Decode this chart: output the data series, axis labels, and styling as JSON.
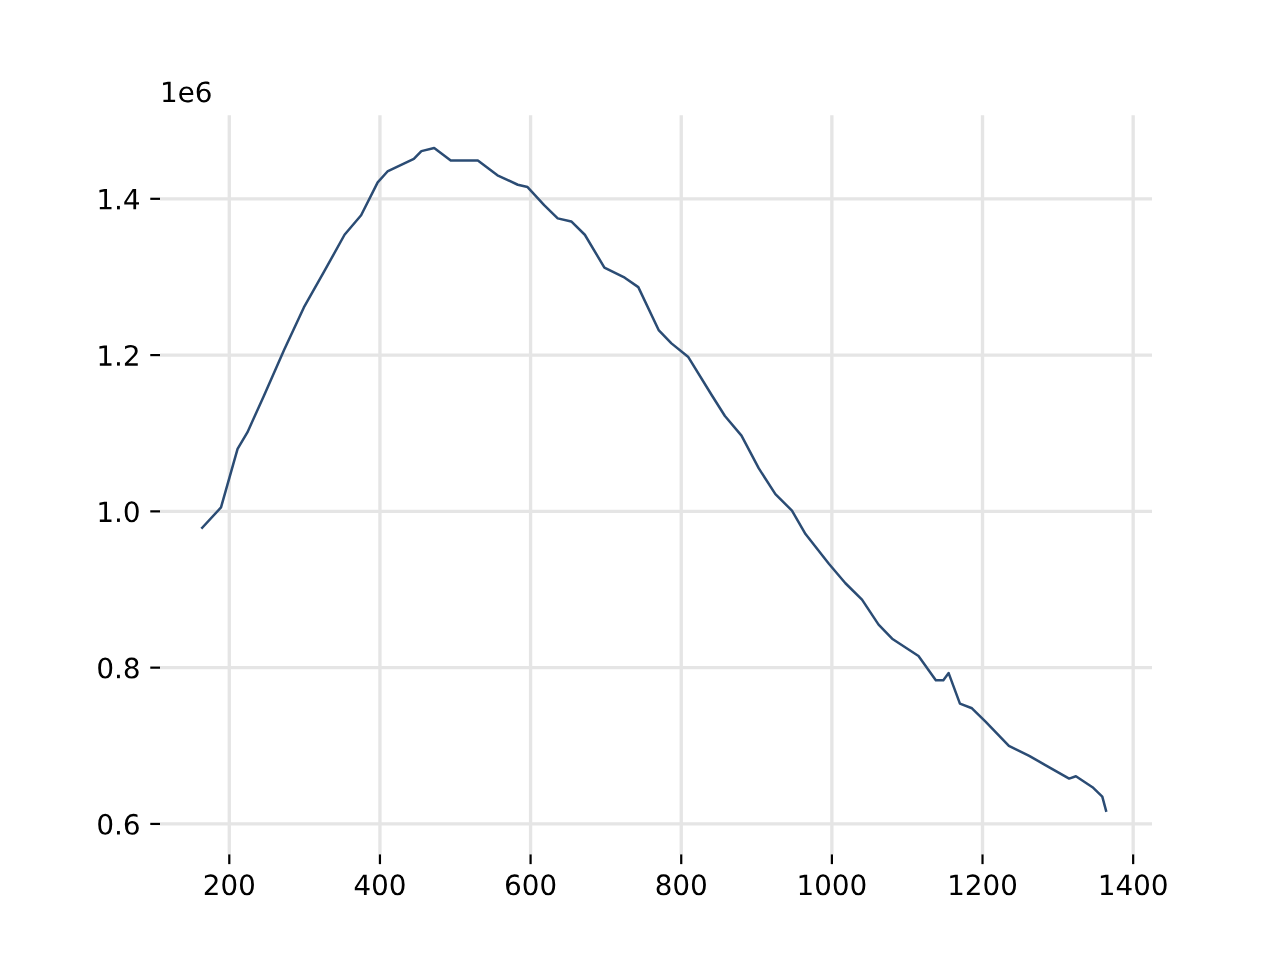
{
  "chart_data": {
    "type": "line",
    "grid": true,
    "legend": false,
    "xlim": [
      108,
      1425
    ],
    "xticks": [
      200,
      400,
      600,
      800,
      1000,
      1200,
      1400
    ],
    "ylim": [
      0.561,
      1.507
    ],
    "yticks": [
      0.6,
      0.8,
      {
        "value": 1.0,
        "label": "1.0"
      },
      1.2,
      1.4
    ],
    "annotations": [
      "1e6"
    ],
    "series": [
      {
        "color": "#2b4c74",
        "x": [
          164,
          189,
          211,
          224,
          246,
          273,
          299,
          326,
          353,
          375,
          397,
          410,
          445,
          455,
          472,
          494,
          530,
          556,
          583,
          596,
          618,
          636,
          654,
          672,
          698,
          725,
          743,
          770,
          787,
          809,
          841,
          858,
          880,
          903,
          925,
          947,
          965,
          996,
          1018,
          1040,
          1062,
          1080,
          1115,
          1138,
          1148,
          1155,
          1170,
          1186,
          1204,
          1235,
          1262,
          1284,
          1315,
          1324,
          1346,
          1359,
          1364
        ],
        "values": [
          0.979,
          1.005,
          1.08,
          1.101,
          1.148,
          1.207,
          1.261,
          1.307,
          1.354,
          1.379,
          1.421,
          1.435,
          1.451,
          1.461,
          1.465,
          1.449,
          1.449,
          1.43,
          1.418,
          1.415,
          1.392,
          1.375,
          1.371,
          1.354,
          1.312,
          1.299,
          1.287,
          1.232,
          1.215,
          1.198,
          1.148,
          1.122,
          1.097,
          1.055,
          1.022,
          1.001,
          0.971,
          0.933,
          0.908,
          0.887,
          0.855,
          0.837,
          0.815,
          0.784,
          0.784,
          0.793,
          0.754,
          0.748,
          0.731,
          0.7,
          0.687,
          0.675,
          0.658,
          0.661,
          0.647,
          0.635,
          0.617
        ]
      }
    ]
  }
}
